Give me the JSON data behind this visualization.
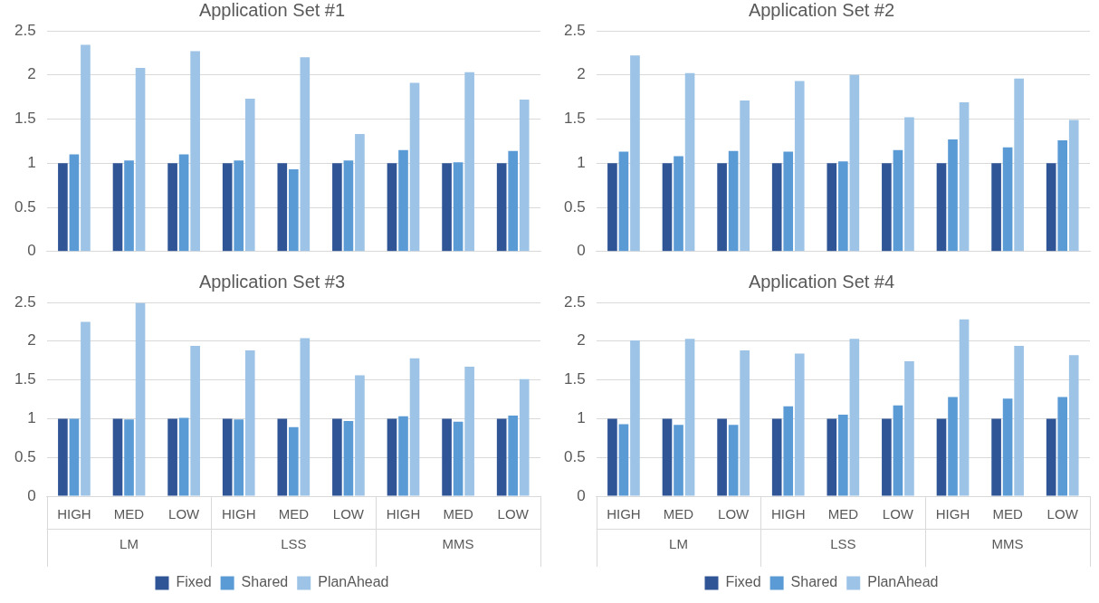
{
  "chart_data": [
    {
      "type": "bar",
      "title": "Application Set #1",
      "categories": [
        null,
        null,
        null,
        null,
        null,
        null,
        null,
        null,
        null
      ],
      "ylim": [
        0,
        2.5
      ],
      "yticks": [
        0,
        0.5,
        1,
        1.5,
        2,
        2.5
      ],
      "grid": "y",
      "legend": false,
      "series": [
        {
          "color": "#2f5597",
          "values": [
            1,
            1,
            1,
            1,
            1,
            1,
            1,
            1,
            1
          ]
        },
        {
          "color": "#5b9bd5",
          "values": [
            1.1,
            1.03,
            1.1,
            1.03,
            0.93,
            1.03,
            1.15,
            1.01,
            1.14
          ]
        },
        {
          "color": "#9dc3e6",
          "values": [
            2.34,
            2.08,
            2.27,
            1.73,
            2.2,
            1.33,
            1.91,
            2.03,
            1.72
          ]
        }
      ]
    },
    {
      "type": "bar",
      "title": "Application Set #2",
      "categories": [
        null,
        null,
        null,
        null,
        null,
        null,
        null,
        null,
        null
      ],
      "ylim": [
        0,
        2.5
      ],
      "yticks": [
        0,
        0.5,
        1,
        1.5,
        2,
        2.5
      ],
      "grid": "y",
      "legend": false,
      "series": [
        {
          "color": "#2f5597",
          "values": [
            1,
            1,
            1,
            1,
            1,
            1,
            1,
            1,
            1
          ]
        },
        {
          "color": "#5b9bd5",
          "values": [
            1.13,
            1.08,
            1.14,
            1.13,
            1.02,
            1.15,
            1.27,
            1.18,
            1.26
          ]
        },
        {
          "color": "#9dc3e6",
          "values": [
            2.22,
            2.02,
            1.71,
            1.93,
            2.0,
            1.52,
            1.69,
            1.96,
            1.49
          ]
        }
      ]
    },
    {
      "type": "bar",
      "title": "Application Set #3",
      "categories": [
        "HIGH",
        "MED",
        "LOW",
        "HIGH",
        "MED",
        "LOW",
        "HIGH",
        "MED",
        "LOW"
      ],
      "annotations": [
        "LM",
        "LSS",
        "MMS"
      ],
      "ylim": [
        0,
        2.5
      ],
      "yticks": [
        0,
        0.5,
        1,
        1.5,
        2,
        2.5
      ],
      "grid": "y",
      "legend": "bottom",
      "series": [
        {
          "name": "Fixed",
          "color": "#2f5597",
          "values": [
            1,
            1,
            1,
            1,
            1,
            1,
            1,
            1,
            1
          ]
        },
        {
          "name": "Shared",
          "color": "#5b9bd5",
          "values": [
            1.0,
            0.99,
            1.01,
            0.99,
            0.89,
            0.97,
            1.03,
            0.96,
            1.04
          ]
        },
        {
          "name": "PlanAhead",
          "color": "#9dc3e6",
          "values": [
            2.25,
            2.49,
            1.94,
            1.88,
            2.04,
            1.56,
            1.78,
            1.67,
            1.51
          ]
        }
      ]
    },
    {
      "type": "bar",
      "title": "Application Set #4",
      "categories": [
        "HIGH",
        "MED",
        "LOW",
        "HIGH",
        "MED",
        "LOW",
        "HIGH",
        "MED",
        "LOW"
      ],
      "annotations": [
        "LM",
        "LSS",
        "MMS"
      ],
      "ylim": [
        0,
        2.5
      ],
      "yticks": [
        0,
        0.5,
        1,
        1.5,
        2,
        2.5
      ],
      "grid": "y",
      "legend": "bottom",
      "series": [
        {
          "name": "Fixed",
          "color": "#2f5597",
          "values": [
            1,
            1,
            1,
            1,
            1,
            1,
            1,
            1,
            1
          ]
        },
        {
          "name": "Shared",
          "color": "#5b9bd5",
          "values": [
            0.93,
            0.92,
            0.92,
            1.16,
            1.05,
            1.17,
            1.28,
            1.26,
            1.28
          ]
        },
        {
          "name": "PlanAhead",
          "color": "#9dc3e6",
          "values": [
            2.01,
            2.03,
            1.88,
            1.84,
            2.03,
            1.74,
            2.28,
            1.94,
            1.82
          ]
        }
      ]
    }
  ]
}
